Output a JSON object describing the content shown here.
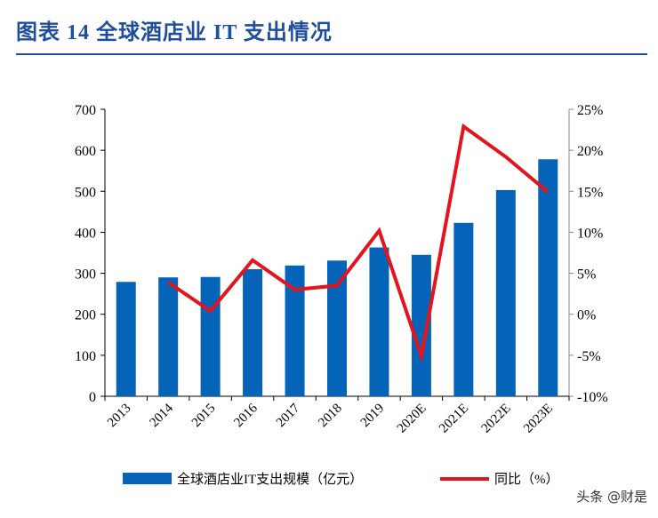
{
  "title": "图表 14  全球酒店业 IT 支出情况",
  "watermark": "头条 @财是",
  "colors": {
    "bar": "#0563b8",
    "line": "#e3141e",
    "title": "#1f4e9c"
  },
  "chart_data": {
    "type": "bar+line",
    "categories": [
      "2013",
      "2014",
      "2015",
      "2016",
      "2017",
      "2018",
      "2019",
      "2020E",
      "2021E",
      "2022E",
      "2023E"
    ],
    "series": [
      {
        "name": "全球酒店业IT支出规模（亿元）",
        "type": "bar",
        "axis": "left",
        "values": [
          279,
          290,
          291,
          310,
          319,
          331,
          363,
          345,
          423,
          503,
          578
        ]
      },
      {
        "name": "同比（%）",
        "type": "line",
        "axis": "right",
        "values": [
          null,
          3.9,
          0.4,
          6.6,
          3.0,
          3.5,
          10.2,
          -5.1,
          22.9,
          19.2,
          14.9
        ]
      }
    ],
    "left_axis": {
      "ylim": [
        0,
        700
      ],
      "ticks": [
        "0",
        "100",
        "200",
        "300",
        "400",
        "500",
        "600",
        "700"
      ]
    },
    "right_axis": {
      "ylim": [
        -10,
        25
      ],
      "ticks": [
        "-10%",
        "-5%",
        "0%",
        "5%",
        "10%",
        "15%",
        "20%",
        "25%"
      ]
    },
    "grid": false,
    "legend": "bottom"
  }
}
